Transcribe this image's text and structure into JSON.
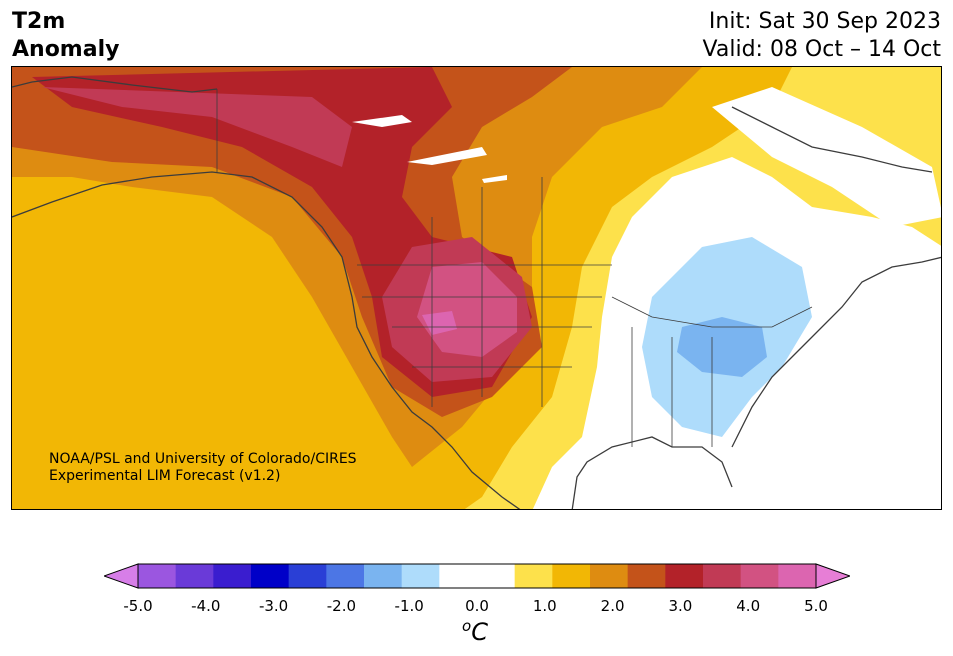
{
  "title": {
    "line1": "T2m",
    "line2": "Anomaly"
  },
  "dates": {
    "init": "Init: Sat 30 Sep 2023",
    "valid": "Valid: 08 Oct – 14 Oct"
  },
  "credit": {
    "line1": "NOAA/PSL and University of Colorado/CIRES",
    "line2": "Experimental LIM Forecast (v1.2)"
  },
  "colorbar": {
    "colors": [
      "#d77ee8",
      "#9b56e0",
      "#6a3ad8",
      "#3a1dcf",
      "#0000c8",
      "#2a3fd6",
      "#4c76e5",
      "#7ab4f0",
      "#aedcfb",
      "#ffffff",
      "#ffffff",
      "#fde14b",
      "#f2b705",
      "#de8c11",
      "#c4531a",
      "#b32229",
      "#c13a55",
      "#d25282",
      "#dc65b0",
      "#e77ed6"
    ],
    "ticks": [
      "-5.0",
      "-4.0",
      "-3.0",
      "-2.0",
      "-1.0",
      "0.0",
      "1.0",
      "2.0",
      "3.0",
      "4.0",
      "5.0"
    ],
    "unit": "C",
    "unit_prefix": "o"
  }
}
